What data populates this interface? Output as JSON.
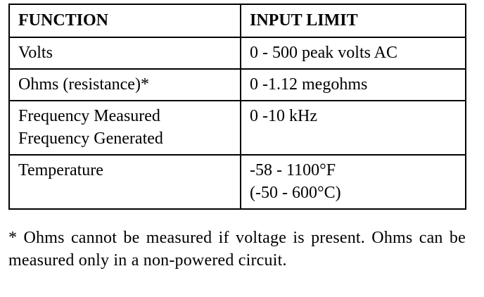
{
  "table": {
    "header": [
      "FUNCTION",
      "INPUT LIMIT"
    ],
    "rows": [
      [
        [
          "Volts"
        ],
        [
          "0 - 500 peak volts AC"
        ]
      ],
      [
        [
          "Ohms (resistance)*"
        ],
        [
          "0 -1.12 megohms"
        ]
      ],
      [
        [
          "Frequency Measured",
          "Frequency Generated"
        ],
        [
          "0 -10 kHz"
        ]
      ],
      [
        [
          "Temperature"
        ],
        [
          "-58 - 1100°F",
          "(-50 - 600°C)"
        ]
      ]
    ]
  },
  "footnote": "* Ohms cannot be measured if voltage is present. Ohms can be measured only in a non-powered circuit."
}
